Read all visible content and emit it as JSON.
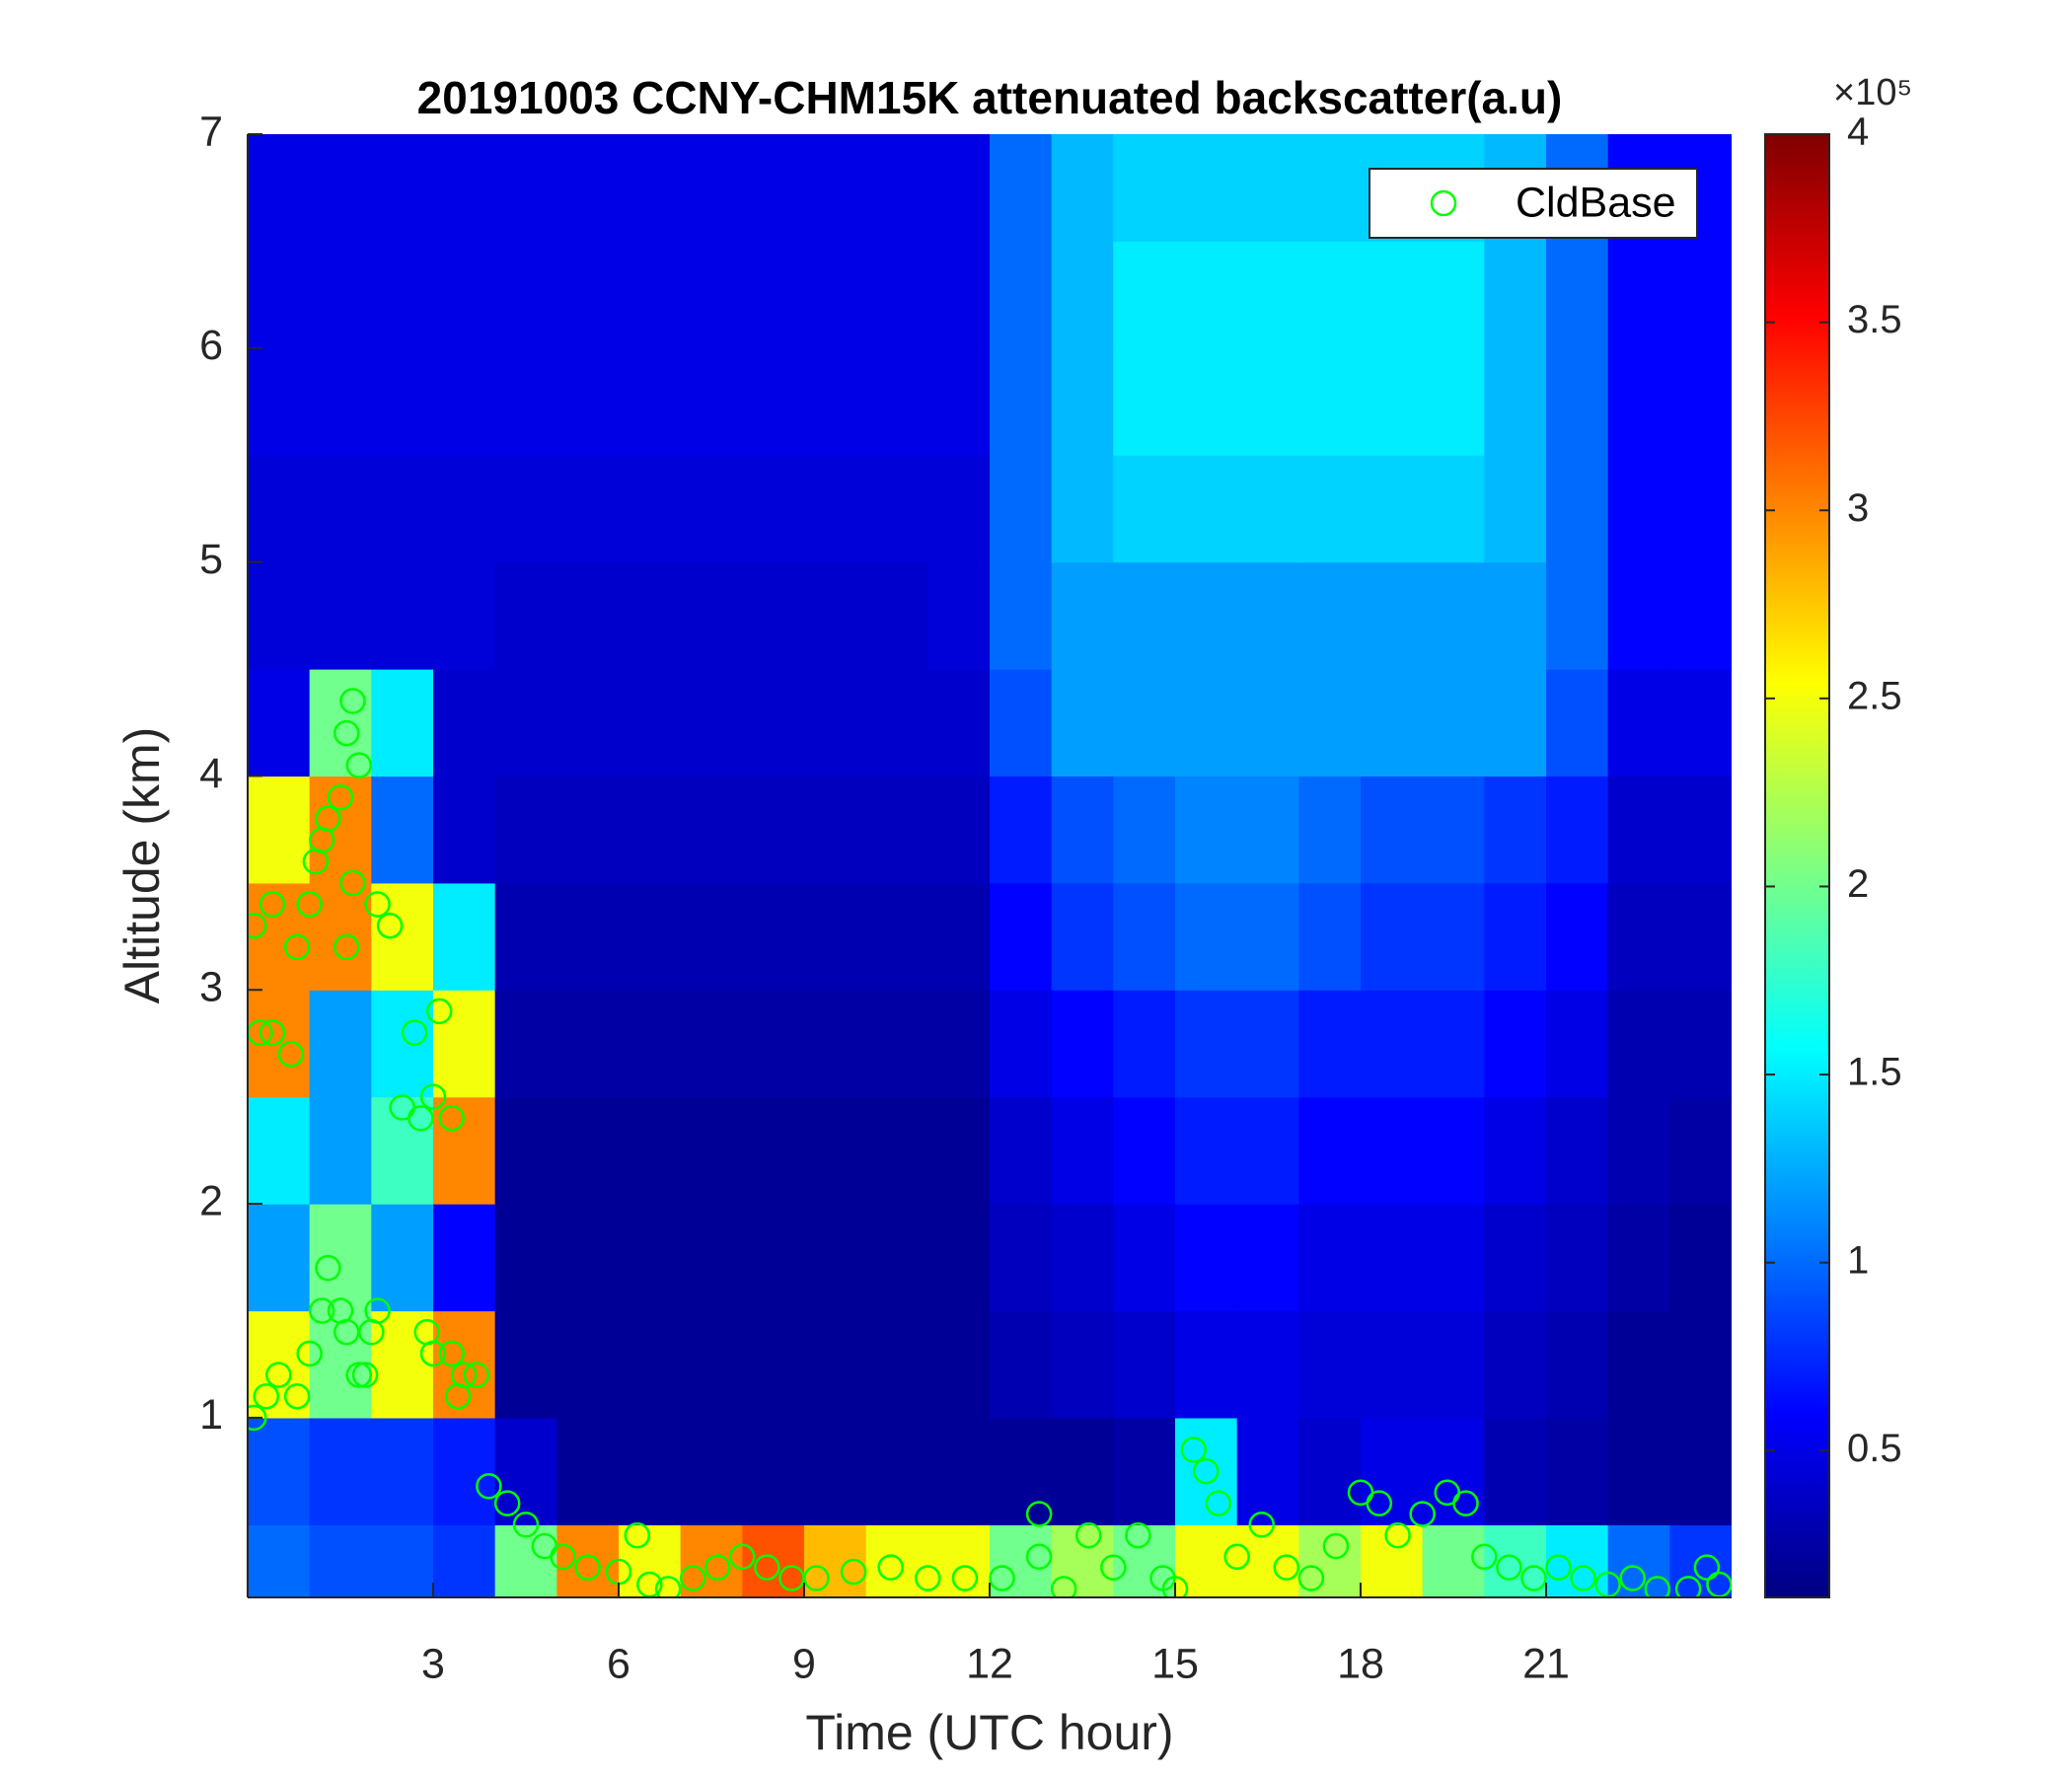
{
  "chart_data": {
    "type": "heatmap",
    "title": "20191003 CCNY-CHM15K attenuated backscatter(a.u)",
    "xlabel": "Time (UTC hour)",
    "ylabel": "Altitude (km)",
    "xlim": [
      0,
      24
    ],
    "ylim": [
      0.16,
      7
    ],
    "xticks": [
      3,
      6,
      9,
      12,
      15,
      18,
      21
    ],
    "yticks": [
      1,
      2,
      3,
      4,
      5,
      6,
      7
    ],
    "colormap": "jet",
    "clim": [
      0.11,
      4
    ],
    "cticks": [
      0.5,
      1,
      1.5,
      2,
      2.5,
      3,
      3.5,
      4
    ],
    "color_exponent": "×10⁵",
    "x_edges": [
      0,
      1,
      2,
      3,
      4,
      5,
      6,
      7,
      8,
      9,
      10,
      11,
      12,
      13,
      14,
      15,
      16,
      17,
      18,
      19,
      20,
      21,
      22,
      23,
      24
    ],
    "y_edges": [
      0.16,
      0.5,
      1,
      1.5,
      2,
      2.5,
      3,
      3.5,
      4,
      4.5,
      5,
      5.5,
      6,
      6.5,
      7
    ],
    "z": [
      [
        1.0,
        0.9,
        0.9,
        0.8,
        2.0,
        3.0,
        2.5,
        3.0,
        3.2,
        2.8,
        2.5,
        2.5,
        2.0,
        2.2,
        2.0,
        2.5,
        2.5,
        2.2,
        2.5,
        2.0,
        1.8,
        1.5,
        1.0,
        0.8
      ],
      [
        0.9,
        0.8,
        0.8,
        0.7,
        0.4,
        0.2,
        0.2,
        0.2,
        0.2,
        0.2,
        0.2,
        0.2,
        0.2,
        0.2,
        0.25,
        1.5,
        0.5,
        0.4,
        0.5,
        0.5,
        0.3,
        0.25,
        0.2,
        0.2
      ],
      [
        2.5,
        2.0,
        2.5,
        3.0,
        0.2,
        0.2,
        0.2,
        0.2,
        0.2,
        0.2,
        0.2,
        0.2,
        0.3,
        0.35,
        0.4,
        0.5,
        0.5,
        0.45,
        0.45,
        0.45,
        0.35,
        0.3,
        0.2,
        0.2
      ],
      [
        1.2,
        2.0,
        1.2,
        0.6,
        0.2,
        0.2,
        0.2,
        0.2,
        0.2,
        0.2,
        0.2,
        0.2,
        0.35,
        0.4,
        0.5,
        0.6,
        0.6,
        0.5,
        0.5,
        0.5,
        0.4,
        0.35,
        0.25,
        0.2
      ],
      [
        1.5,
        1.2,
        1.8,
        3.0,
        0.2,
        0.2,
        0.2,
        0.2,
        0.2,
        0.2,
        0.2,
        0.2,
        0.4,
        0.5,
        0.6,
        0.7,
        0.7,
        0.6,
        0.6,
        0.6,
        0.5,
        0.4,
        0.3,
        0.25
      ],
      [
        3.0,
        1.2,
        1.5,
        2.5,
        0.25,
        0.25,
        0.25,
        0.25,
        0.25,
        0.25,
        0.25,
        0.25,
        0.5,
        0.6,
        0.7,
        0.8,
        0.8,
        0.7,
        0.7,
        0.7,
        0.6,
        0.5,
        0.3,
        0.3
      ],
      [
        3.0,
        3.0,
        2.5,
        1.5,
        0.3,
        0.3,
        0.3,
        0.3,
        0.3,
        0.3,
        0.3,
        0.3,
        0.6,
        0.8,
        0.9,
        1.0,
        1.0,
        0.9,
        0.8,
        0.8,
        0.7,
        0.6,
        0.35,
        0.35
      ],
      [
        2.5,
        3.0,
        1.0,
        0.4,
        0.35,
        0.35,
        0.35,
        0.35,
        0.35,
        0.35,
        0.35,
        0.35,
        0.7,
        0.9,
        1.0,
        1.1,
        1.1,
        1.0,
        0.9,
        0.9,
        0.8,
        0.7,
        0.4,
        0.4
      ],
      [
        0.5,
        2.0,
        1.5,
        0.4,
        0.4,
        0.4,
        0.4,
        0.4,
        0.4,
        0.4,
        0.4,
        0.4,
        0.9,
        1.2,
        1.2,
        1.2,
        1.2,
        1.2,
        1.2,
        1.2,
        1.2,
        0.9,
        0.5,
        0.5
      ],
      [
        0.45,
        0.45,
        0.45,
        0.45,
        0.4,
        0.4,
        0.4,
        0.4,
        0.4,
        0.4,
        0.4,
        0.45,
        1.0,
        1.2,
        1.2,
        1.2,
        1.2,
        1.2,
        1.2,
        1.2,
        1.2,
        1.0,
        0.6,
        0.6
      ],
      [
        0.45,
        0.45,
        0.45,
        0.45,
        0.45,
        0.45,
        0.45,
        0.45,
        0.45,
        0.45,
        0.45,
        0.45,
        1.0,
        1.3,
        1.4,
        1.4,
        1.4,
        1.4,
        1.4,
        1.4,
        1.3,
        1.0,
        0.6,
        0.6
      ],
      [
        0.5,
        0.5,
        0.5,
        0.5,
        0.5,
        0.5,
        0.5,
        0.5,
        0.5,
        0.5,
        0.5,
        0.5,
        1.0,
        1.3,
        1.5,
        1.5,
        1.5,
        1.5,
        1.5,
        1.5,
        1.3,
        1.0,
        0.6,
        0.6
      ],
      [
        0.5,
        0.5,
        0.5,
        0.5,
        0.5,
        0.5,
        0.5,
        0.5,
        0.5,
        0.5,
        0.5,
        0.5,
        1.0,
        1.3,
        1.5,
        1.5,
        1.5,
        1.5,
        1.5,
        1.5,
        1.3,
        1.0,
        0.6,
        0.6
      ],
      [
        0.5,
        0.5,
        0.5,
        0.5,
        0.5,
        0.5,
        0.5,
        0.5,
        0.5,
        0.5,
        0.5,
        0.5,
        1.0,
        1.3,
        1.4,
        1.4,
        1.4,
        1.4,
        1.4,
        1.4,
        1.3,
        1.0,
        0.6,
        0.6
      ]
    ],
    "scatter": {
      "name": "CldBase",
      "color": "#00ff00",
      "x": [
        0.1,
        0.2,
        0.4,
        0.4,
        0.7,
        0.8,
        1.0,
        1.1,
        1.2,
        1.3,
        1.5,
        1.6,
        1.7,
        1.8,
        1.7,
        1.6,
        2.1,
        2.3,
        2.5,
        2.8,
        3.0,
        3.1,
        3.3,
        2.7,
        0.1,
        0.3,
        0.5,
        0.8,
        1.0,
        1.2,
        1.3,
        1.5,
        1.6,
        1.8,
        2.0,
        2.1,
        1.9,
        2.9,
        3.0,
        3.3,
        3.5,
        3.7,
        3.4,
        3.9,
        4.2,
        4.5,
        4.8,
        5.1,
        5.5,
        6.0,
        6.3,
        6.5,
        6.8,
        7.2,
        7.6,
        8.0,
        8.4,
        8.8,
        9.2,
        9.8,
        10.4,
        11.0,
        11.6,
        12.2,
        12.8,
        12.8,
        13.2,
        13.6,
        14.0,
        14.4,
        14.8,
        15.0,
        15.3,
        15.5,
        15.7,
        16.0,
        16.4,
        16.8,
        17.2,
        17.6,
        18.0,
        18.3,
        18.6,
        19.0,
        19.4,
        19.7,
        20.0,
        20.4,
        20.8,
        21.2,
        21.6,
        22.0,
        22.4,
        22.8,
        23.3,
        23.6,
        23.8
      ],
      "y": [
        3.3,
        2.8,
        2.8,
        3.4,
        2.7,
        3.2,
        3.4,
        3.6,
        3.7,
        3.8,
        3.9,
        4.2,
        4.35,
        4.05,
        3.5,
        3.2,
        3.4,
        3.3,
        2.45,
        2.4,
        2.5,
        2.9,
        2.4,
        2.8,
        1.0,
        1.1,
        1.2,
        1.1,
        1.3,
        1.5,
        1.7,
        1.5,
        1.4,
        1.2,
        1.4,
        1.5,
        1.2,
        1.4,
        1.3,
        1.3,
        1.2,
        1.2,
        1.1,
        0.68,
        0.6,
        0.5,
        0.4,
        0.35,
        0.3,
        0.28,
        0.45,
        0.22,
        0.2,
        0.25,
        0.3,
        0.35,
        0.3,
        0.25,
        0.25,
        0.28,
        0.3,
        0.25,
        0.25,
        0.25,
        0.35,
        0.55,
        0.2,
        0.45,
        0.3,
        0.45,
        0.25,
        0.2,
        0.85,
        0.75,
        0.6,
        0.35,
        0.5,
        0.3,
        0.25,
        0.4,
        0.65,
        0.6,
        0.45,
        0.55,
        0.65,
        0.6,
        0.35,
        0.3,
        0.25,
        0.3,
        0.25,
        0.22,
        0.25,
        0.2,
        0.2,
        0.3,
        0.22
      ]
    },
    "legend": "upper right"
  }
}
